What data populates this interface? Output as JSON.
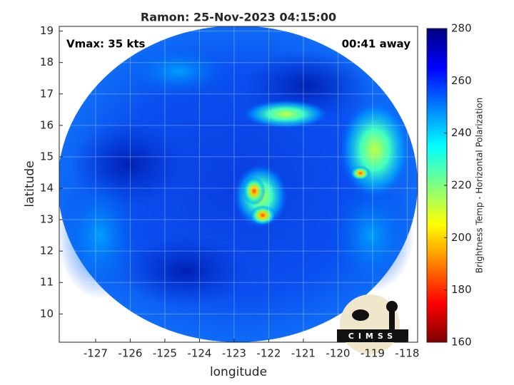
{
  "chart_data": {
    "type": "image",
    "title": "Ramon: 25-Nov-2023 04:15:00",
    "annotations": [
      "Vmax: 35 kts",
      "00:41 away"
    ],
    "xlabel": "longitude",
    "ylabel": "latitude",
    "xlim": [
      -128.05,
      -117.7
    ],
    "ylim": [
      9.1,
      19.15
    ],
    "xticks": [
      -127,
      -126,
      -125,
      -124,
      -123,
      -122,
      -121,
      -120,
      -119,
      -118
    ],
    "yticks": [
      10,
      11,
      12,
      13,
      14,
      15,
      16,
      17,
      18,
      19
    ],
    "grid": true,
    "colorbar": {
      "label": "Brightness Temp - Horizontal Polarization",
      "lim": [
        160,
        280
      ],
      "ticks": [
        160,
        180,
        200,
        220,
        240,
        260,
        280
      ],
      "colormap": "jet"
    },
    "logo_text": "CIMSS"
  }
}
